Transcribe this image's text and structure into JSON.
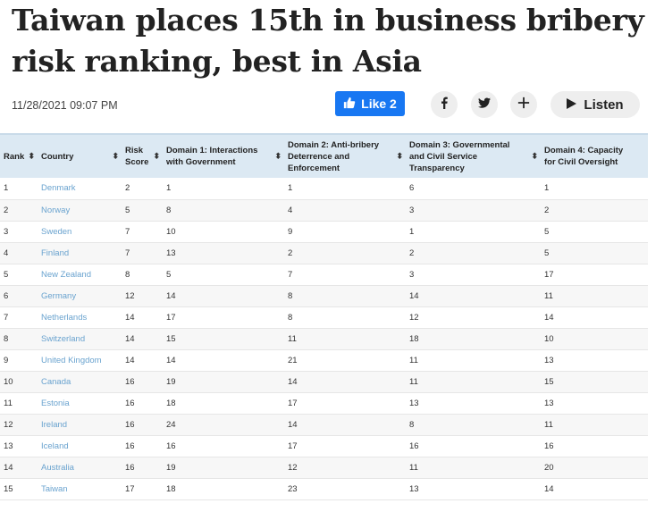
{
  "headline": "Taiwan places 15th in business bribery risk ranking, best in Asia",
  "timestamp": "11/28/2021 09:07 PM",
  "like_button": {
    "label": "Like 2"
  },
  "listen_button": {
    "label": "Listen"
  },
  "icons": {
    "like": "thumbs-up-icon",
    "facebook": "facebook-icon",
    "twitter": "twitter-icon",
    "plus": "plus-icon",
    "play": "play-icon"
  },
  "colors": {
    "like_blue": "#1877f2",
    "header_bg": "#dce9f3",
    "link": "#6aa3cf"
  },
  "table": {
    "headers": [
      "Rank",
      "Country",
      "Risk Score",
      "Domain 1: Interactions with Government",
      "Domain 2: Anti-bribery Deterrence and Enforcement",
      "Domain 3: Governmental and Civil Service Transparency",
      "Domain 4: Capacity for Civil Oversight"
    ],
    "sort_icon": "⬍",
    "rows": [
      [
        "1",
        "Denmark",
        "2",
        "1",
        "1",
        "6",
        "1"
      ],
      [
        "2",
        "Norway",
        "5",
        "8",
        "4",
        "3",
        "2"
      ],
      [
        "3",
        "Sweden",
        "7",
        "10",
        "9",
        "1",
        "5"
      ],
      [
        "4",
        "Finland",
        "7",
        "13",
        "2",
        "2",
        "5"
      ],
      [
        "5",
        "New Zealand",
        "8",
        "5",
        "7",
        "3",
        "17"
      ],
      [
        "6",
        "Germany",
        "12",
        "14",
        "8",
        "14",
        "11"
      ],
      [
        "7",
        "Netherlands",
        "14",
        "17",
        "8",
        "12",
        "14"
      ],
      [
        "8",
        "Switzerland",
        "14",
        "15",
        "11",
        "18",
        "10"
      ],
      [
        "9",
        "United Kingdom",
        "14",
        "14",
        "21",
        "11",
        "13"
      ],
      [
        "10",
        "Canada",
        "16",
        "19",
        "14",
        "11",
        "15"
      ],
      [
        "11",
        "Estonia",
        "16",
        "18",
        "17",
        "13",
        "13"
      ],
      [
        "12",
        "Ireland",
        "16",
        "24",
        "14",
        "8",
        "11"
      ],
      [
        "13",
        "Iceland",
        "16",
        "16",
        "17",
        "16",
        "16"
      ],
      [
        "14",
        "Australia",
        "16",
        "19",
        "12",
        "11",
        "20"
      ],
      [
        "15",
        "Taiwan",
        "17",
        "18",
        "23",
        "13",
        "14"
      ]
    ]
  }
}
